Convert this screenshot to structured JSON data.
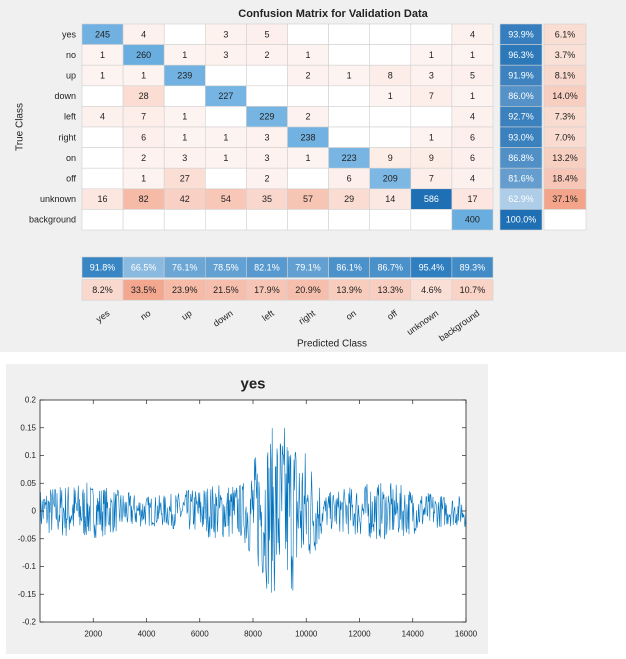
{
  "chart_data": [
    {
      "type": "heatmap",
      "title": "Confusion Matrix for Validation Data",
      "ylabel": "True Class",
      "xlabel": "Predicted Class",
      "classes": [
        "yes",
        "no",
        "up",
        "down",
        "left",
        "right",
        "on",
        "off",
        "unknown",
        "background"
      ],
      "matrix": [
        [
          245,
          4,
          null,
          3,
          5,
          null,
          null,
          null,
          null,
          4
        ],
        [
          1,
          260,
          1,
          3,
          2,
          1,
          null,
          null,
          1,
          1
        ],
        [
          1,
          1,
          239,
          null,
          null,
          2,
          1,
          8,
          3,
          5
        ],
        [
          null,
          28,
          null,
          227,
          null,
          null,
          null,
          1,
          7,
          1
        ],
        [
          4,
          7,
          1,
          null,
          229,
          2,
          null,
          null,
          null,
          4
        ],
        [
          null,
          6,
          1,
          1,
          3,
          238,
          null,
          null,
          1,
          6
        ],
        [
          null,
          2,
          3,
          1,
          3,
          1,
          223,
          9,
          9,
          6
        ],
        [
          null,
          1,
          27,
          null,
          2,
          null,
          6,
          209,
          7,
          4
        ],
        [
          16,
          82,
          42,
          54,
          35,
          57,
          29,
          14,
          586,
          17
        ],
        [
          null,
          null,
          null,
          null,
          null,
          null,
          null,
          null,
          null,
          400
        ]
      ],
      "row_summary": [
        [
          "93.9%",
          "6.1%"
        ],
        [
          "96.3%",
          "3.7%"
        ],
        [
          "91.9%",
          "8.1%"
        ],
        [
          "86.0%",
          "14.0%"
        ],
        [
          "92.7%",
          "7.3%"
        ],
        [
          "93.0%",
          "7.0%"
        ],
        [
          "86.8%",
          "13.2%"
        ],
        [
          "81.6%",
          "18.4%"
        ],
        [
          "62.9%",
          "37.1%"
        ],
        [
          "100.0%",
          ""
        ]
      ],
      "col_summary": [
        [
          "91.8%",
          "8.2%"
        ],
        [
          "66.5%",
          "33.5%"
        ],
        [
          "76.1%",
          "23.9%"
        ],
        [
          "78.5%",
          "21.5%"
        ],
        [
          "82.1%",
          "17.9%"
        ],
        [
          "79.1%",
          "20.9%"
        ],
        [
          "86.1%",
          "13.9%"
        ],
        [
          "86.7%",
          "13.3%"
        ],
        [
          "95.4%",
          "4.6%"
        ],
        [
          "89.3%",
          "10.7%"
        ]
      ],
      "colors": {
        "diag": "#6aaee0",
        "diag_strong": "#1f6fb4",
        "summary": "#4a90c6",
        "error_max": "#f3a48a"
      }
    },
    {
      "type": "line",
      "title": "yes",
      "xlim": [
        0,
        16000
      ],
      "ylim": [
        -0.2,
        0.2
      ],
      "xticks": [
        2000,
        4000,
        6000,
        8000,
        10000,
        12000,
        14000,
        16000
      ],
      "yticks": [
        -0.2,
        -0.15,
        -0.1,
        -0.05,
        0,
        0.05,
        0.1,
        0.15,
        0.2
      ],
      "ytick_labels": [
        "-0.2",
        "-0.15",
        "-0.1",
        "-0.05",
        "0",
        "0.05",
        "0.1",
        "0.15",
        "0.2"
      ],
      "samples": 16000,
      "series_color": "#0072bd"
    }
  ]
}
